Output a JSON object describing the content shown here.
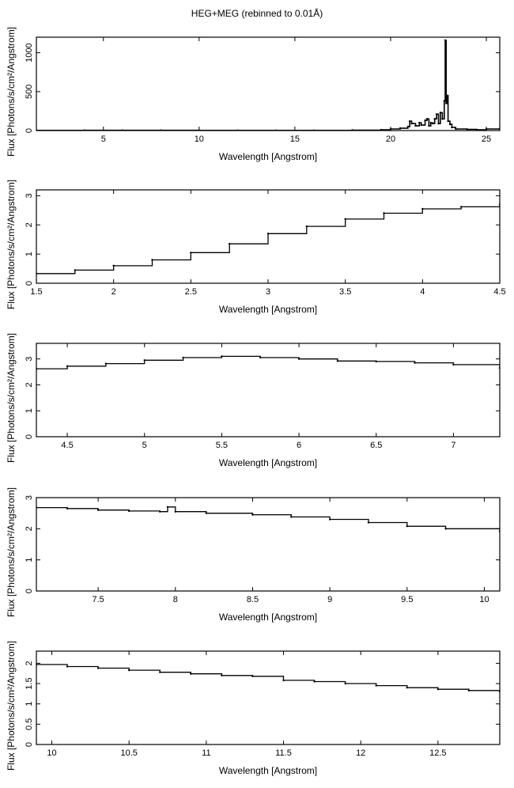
{
  "figure": {
    "title": "HEG+MEG (rebinned to 0.01Å)"
  },
  "chart_data": [
    {
      "type": "line",
      "title": "HEG+MEG (rebinned to 0.01Å)",
      "xlabel": "Wavelength [Angstrom]",
      "ylabel": "Flux [Photons/s/cm²/Angstrom]",
      "xlim": [
        1.5,
        25.7
      ],
      "ylim": [
        0,
        1200
      ],
      "xticks": [
        5,
        10,
        15,
        20,
        25
      ],
      "yticks": [
        0,
        500,
        1000
      ],
      "series": [
        {
          "x": [
            1.5,
            4,
            6,
            8,
            10,
            12,
            14,
            16,
            18,
            19.5,
            20.0,
            20.5,
            20.9,
            21.0,
            21.1,
            21.3,
            21.5,
            21.6,
            21.8,
            21.9,
            22.0,
            22.1,
            22.2,
            22.3,
            22.4,
            22.5,
            22.6,
            22.7,
            22.8,
            22.85,
            22.9,
            22.95,
            23.0,
            23.1,
            23.2,
            23.4,
            24,
            24.5,
            25,
            25.7
          ],
          "y": [
            2,
            3,
            3,
            3,
            2,
            2,
            2,
            2,
            5,
            10,
            20,
            30,
            50,
            120,
            90,
            60,
            100,
            70,
            130,
            150,
            60,
            100,
            90,
            150,
            210,
            90,
            230,
            150,
            380,
            1160,
            350,
            450,
            120,
            80,
            40,
            20,
            15,
            10,
            20,
            25
          ]
        }
      ]
    },
    {
      "type": "line",
      "xlabel": "Wavelength [Angstrom]",
      "ylabel": "Flux [Photons/s/cm²/Angstrom]",
      "xlim": [
        1.5,
        4.5
      ],
      "ylim": [
        0,
        3.2
      ],
      "xticks": [
        1.5,
        2,
        2.5,
        3,
        3.5,
        4,
        4.5
      ],
      "yticks": [
        0,
        1,
        2,
        3
      ],
      "series": [
        {
          "x": [
            1.5,
            1.75,
            2.0,
            2.25,
            2.5,
            2.75,
            3.0,
            3.25,
            3.5,
            3.75,
            4.0,
            4.25,
            4.5
          ],
          "y": [
            0.33,
            0.45,
            0.6,
            0.8,
            1.05,
            1.35,
            1.7,
            1.95,
            2.2,
            2.4,
            2.55,
            2.62,
            2.7
          ]
        }
      ]
    },
    {
      "type": "line",
      "xlabel": "Wavelength [Angstrom]",
      "ylabel": "Flux [Photons/s/cm²/Angstrom]",
      "xlim": [
        4.3,
        7.3
      ],
      "ylim": [
        0,
        3.6
      ],
      "xticks": [
        4.5,
        5,
        5.5,
        6,
        6.5,
        7
      ],
      "yticks": [
        0,
        1,
        2,
        3
      ],
      "series": [
        {
          "x": [
            4.3,
            4.5,
            4.75,
            5.0,
            5.25,
            5.5,
            5.75,
            6.0,
            6.25,
            6.5,
            6.75,
            7.0,
            7.3
          ],
          "y": [
            2.62,
            2.72,
            2.82,
            2.95,
            3.05,
            3.1,
            3.05,
            3.0,
            2.92,
            2.9,
            2.85,
            2.78,
            2.65
          ]
        }
      ]
    },
    {
      "type": "line",
      "xlabel": "Wavelength [Angstrom]",
      "ylabel": "Flux [Photons/s/cm²/Angstrom]",
      "xlim": [
        7.1,
        10.1
      ],
      "ylim": [
        0,
        3.0
      ],
      "xticks": [
        7.5,
        8,
        8.5,
        9,
        9.5,
        10
      ],
      "yticks": [
        0,
        1,
        2,
        3
      ],
      "series": [
        {
          "x": [
            7.1,
            7.3,
            7.5,
            7.7,
            7.9,
            7.95,
            8.0,
            8.2,
            8.5,
            8.75,
            9.0,
            9.25,
            9.5,
            9.75,
            10.1
          ],
          "y": [
            2.68,
            2.65,
            2.6,
            2.57,
            2.55,
            2.7,
            2.55,
            2.5,
            2.45,
            2.38,
            2.3,
            2.2,
            2.08,
            2.0,
            1.92
          ]
        }
      ]
    },
    {
      "type": "line",
      "xlabel": "Wavelength [Angstrom]",
      "ylabel": "Flux [Photons/s/cm²/Angstrom]",
      "xlim": [
        9.9,
        12.9
      ],
      "ylim": [
        0,
        2.3
      ],
      "xticks": [
        10,
        10.5,
        11,
        11.5,
        12,
        12.5
      ],
      "yticks": [
        0,
        0.5,
        1,
        1.5,
        2
      ],
      "series": [
        {
          "x": [
            9.9,
            10.1,
            10.3,
            10.5,
            10.7,
            10.9,
            11.1,
            11.3,
            11.5,
            11.7,
            11.9,
            12.1,
            12.3,
            12.5,
            12.7,
            12.9
          ],
          "y": [
            1.97,
            1.92,
            1.88,
            1.83,
            1.78,
            1.74,
            1.7,
            1.68,
            1.58,
            1.55,
            1.5,
            1.45,
            1.4,
            1.36,
            1.33,
            1.3
          ]
        }
      ]
    }
  ]
}
